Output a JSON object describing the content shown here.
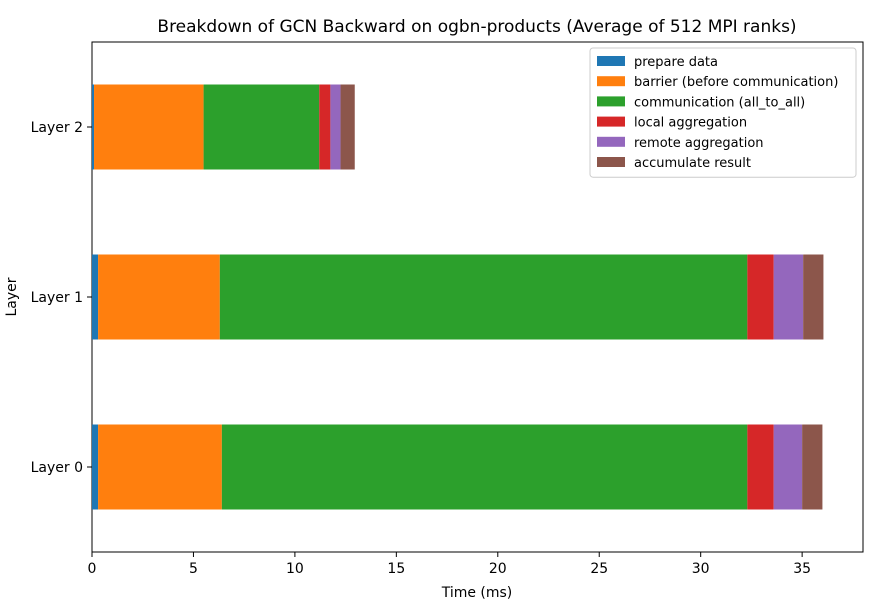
{
  "chart_data": {
    "type": "bar",
    "orientation": "horizontal",
    "stacked": true,
    "title": "Breakdown of GCN Backward on ogbn-products (Average of 512 MPI ranks)",
    "xlabel": "Time (ms)",
    "ylabel": "Layer",
    "xlim": [
      0,
      38
    ],
    "xticks": [
      0,
      5,
      10,
      15,
      20,
      25,
      30,
      35
    ],
    "categories": [
      "Layer 0",
      "Layer 1",
      "Layer 2"
    ],
    "series": [
      {
        "name": "prepare data",
        "color": "#1f77b4",
        "values": [
          0.3,
          0.3,
          0.1
        ]
      },
      {
        "name": "barrier (before communication)",
        "color": "#ff7f0e",
        "values": [
          6.1,
          6.0,
          5.4
        ]
      },
      {
        "name": "communication (all_to_all)",
        "color": "#2ca02c",
        "values": [
          25.9,
          26.0,
          5.7
        ]
      },
      {
        "name": "local aggregation",
        "color": "#d62728",
        "values": [
          1.3,
          1.3,
          0.55
        ]
      },
      {
        "name": "remote aggregation",
        "color": "#9467bd",
        "values": [
          1.4,
          1.45,
          0.5
        ]
      },
      {
        "name": "accumulate result",
        "color": "#8c564b",
        "values": [
          1.0,
          1.0,
          0.7
        ]
      }
    ],
    "legend_position": "top-right",
    "grid": false
  }
}
